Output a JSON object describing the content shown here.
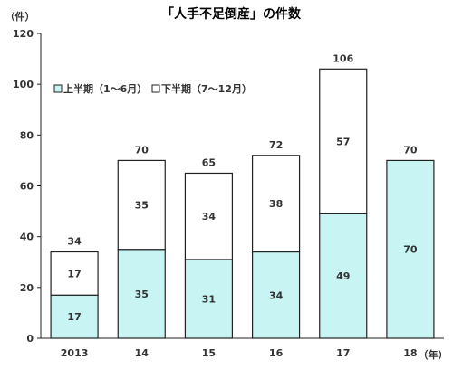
{
  "chart_data": {
    "type": "bar",
    "stacked": true,
    "title": "「人手不足倒産」の件数",
    "y_unit": "（件）",
    "x_unit": "（年）",
    "categories": [
      "2013",
      "14",
      "15",
      "16",
      "17",
      "18"
    ],
    "series": [
      {
        "name": "上半期（1～6月）",
        "values": [
          17,
          35,
          31,
          34,
          49,
          70
        ],
        "color": "#c8f4f4"
      },
      {
        "name": "下半期（7～12月）",
        "values": [
          17,
          35,
          34,
          38,
          57,
          null
        ],
        "color": "#ffffff"
      }
    ],
    "totals": [
      34,
      70,
      65,
      72,
      106,
      70
    ],
    "ylim": [
      0,
      120
    ],
    "yticks": [
      0,
      20,
      40,
      60,
      80,
      100,
      120
    ],
    "grid": false,
    "legend_position": "top-left"
  }
}
